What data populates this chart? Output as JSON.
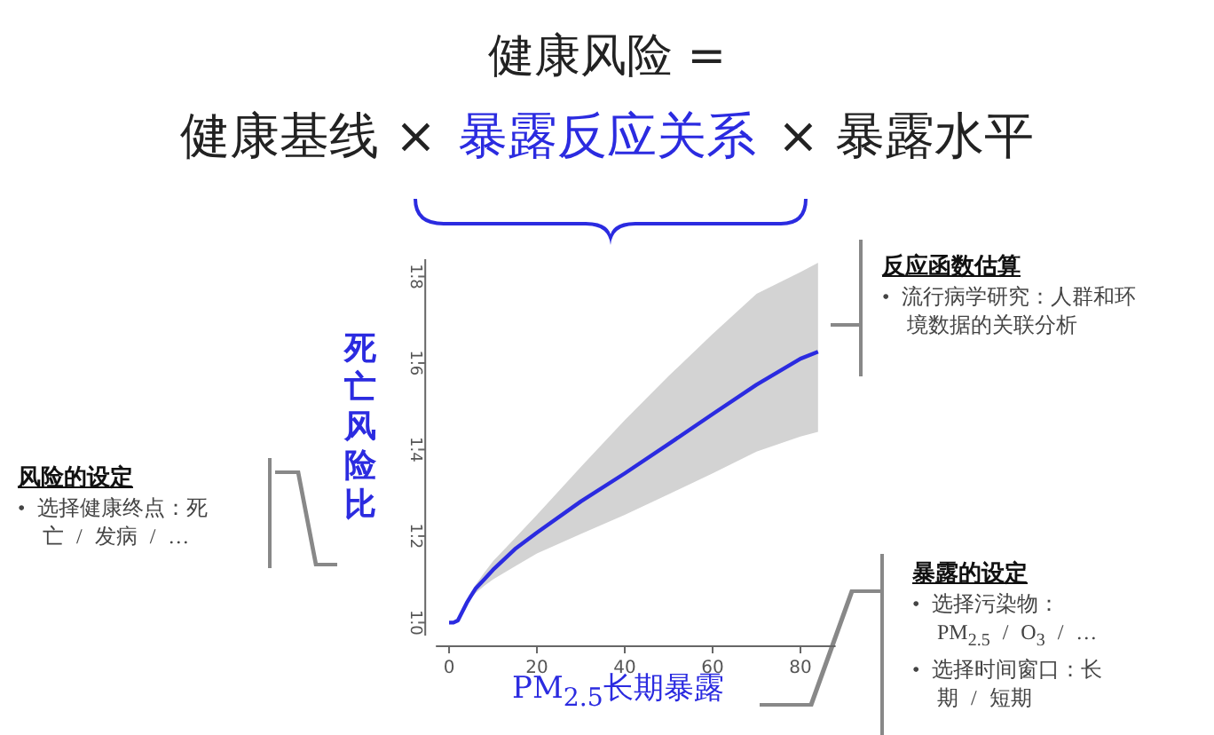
{
  "chart_data": {
    "type": "line",
    "title": "健康风险 =",
    "xlabel": "PM$_{2.5}$长期暴露",
    "ylabel": "死亡风险比",
    "x": [
      0,
      1,
      2,
      3,
      4,
      5,
      6,
      8,
      10,
      15,
      20,
      30,
      40,
      50,
      60,
      70,
      80,
      84
    ],
    "series": [
      {
        "color": "#2b2be0",
        "values": [
          1.0,
          1.0,
          1.005,
          1.025,
          1.045,
          1.062,
          1.078,
          1.1,
          1.122,
          1.17,
          1.208,
          1.28,
          1.345,
          1.413,
          1.482,
          1.55,
          1.61,
          1.626
        ],
        "lower": [
          1.0,
          1.0,
          1.004,
          1.022,
          1.04,
          1.055,
          1.068,
          1.085,
          1.1,
          1.13,
          1.16,
          1.205,
          1.249,
          1.297,
          1.345,
          1.395,
          1.43,
          1.441
        ],
        "upper": [
          1.0,
          1.0,
          1.006,
          1.028,
          1.05,
          1.07,
          1.087,
          1.115,
          1.142,
          1.195,
          1.249,
          1.36,
          1.468,
          1.57,
          1.667,
          1.76,
          1.81,
          1.832
        ]
      }
    ],
    "xlim": [
      -3,
      88
    ],
    "ylim": [
      0.97,
      1.84
    ],
    "xticks": [
      0,
      20,
      40,
      60,
      80
    ],
    "yticks": [
      {
        "value": 1,
        "label": "1.0"
      },
      {
        "value": 1.2,
        "label": "1.2"
      },
      {
        "value": 1.4,
        "label": "1.4"
      },
      {
        "value": 1.6,
        "label": "1.6"
      },
      {
        "value": 1.8,
        "label": "1.8"
      }
    ],
    "grid": false,
    "marker": "none",
    "line_style": "solid",
    "annotations": [
      "健康基线 ×",
      "暴露反应关系",
      "× 暴露水平",
      "反应函数估算",
      "• 流行病学研究：人群和环境数据的关联分析",
      "风险的设定",
      "• 选择健康终点：死亡 / 发病 / …",
      "暴露的设定",
      "• 选择污染物：PM$_{2.5}$ / O$_{3}$ / …",
      "• 选择时间窗口：长期 / 短期"
    ]
  }
}
